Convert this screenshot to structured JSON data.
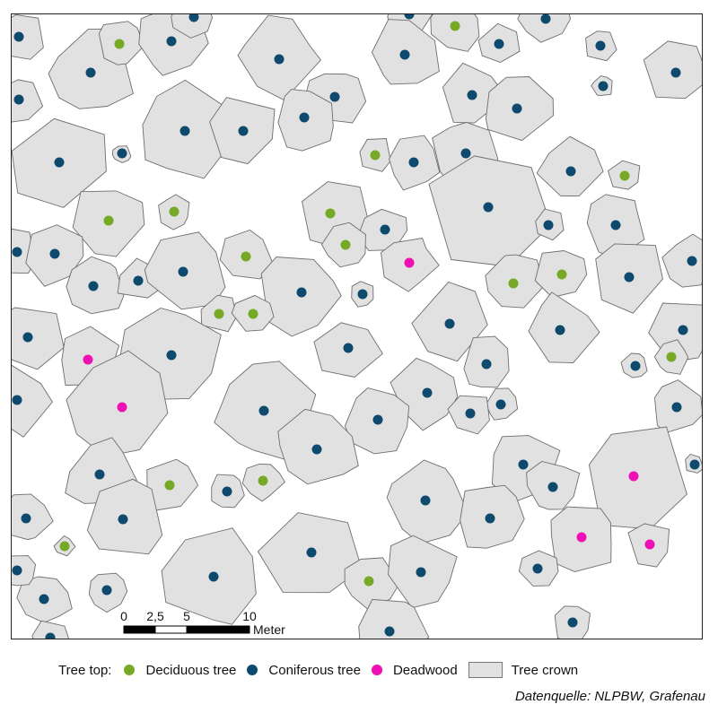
{
  "map": {
    "scale_bar": {
      "ticks": [
        "0",
        "2,5",
        "5",
        "10"
      ],
      "unit": "Meter"
    },
    "colors": {
      "crown_fill": "#e1e1e1",
      "crown_stroke": "#6e6e6e",
      "deciduous": "#76a925",
      "coniferous": "#0d4a6e",
      "deadwood": "#ee10b4"
    }
  },
  "legend": {
    "label": "Tree top:",
    "items": [
      {
        "label": "Deciduous tree",
        "color": "#76a925",
        "kind": "dot"
      },
      {
        "label": "Coniferous tree",
        "color": "#0d4a6e",
        "kind": "dot"
      },
      {
        "label": "Deadwood",
        "color": "#ee10b4",
        "kind": "dot"
      },
      {
        "label": "Tree crown",
        "color": "#e1e1e1",
        "kind": "swatch"
      }
    ]
  },
  "source": "Datenquelle: NLPBW, Grafenau"
}
